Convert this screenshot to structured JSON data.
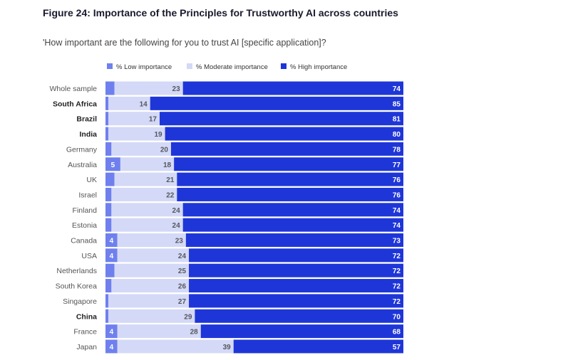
{
  "title": "Figure 24: Importance of the Principles for Trustworthy AI across countries",
  "subtitle": "'How important are the following for you to trust AI [specific application]?",
  "colors": {
    "low": "#6f80ee",
    "moderate": "#d4d9f7",
    "high": "#1e36d8",
    "lowText": "#ffffff",
    "modText": "#55575e",
    "highText": "#ffffff"
  },
  "chart_data": {
    "type": "bar",
    "orientation": "horizontal",
    "stacked": true,
    "categories": [
      "Whole sample",
      "South Africa",
      "Brazil",
      "India",
      "Germany",
      "Australia",
      "UK",
      "Israel",
      "Finland",
      "Estonia",
      "Canada",
      "USA",
      "Netherlands",
      "South Korea",
      "Singapore",
      "China",
      "France",
      "Japan"
    ],
    "bold_categories": [
      "South Africa",
      "Brazil",
      "India",
      "China"
    ],
    "series": [
      {
        "name": "% Low importance",
        "values": [
          3,
          1,
          1,
          1,
          2,
          5,
          3,
          2,
          2,
          2,
          4,
          4,
          3,
          2,
          1,
          1,
          4,
          4
        ],
        "labels": [
          "",
          "",
          "",
          "",
          "",
          "5",
          "",
          "",
          "",
          "",
          "4",
          "4",
          "",
          "",
          "",
          "",
          "4",
          "4"
        ]
      },
      {
        "name": "% Moderate importance",
        "values": [
          23,
          14,
          17,
          19,
          20,
          18,
          21,
          22,
          24,
          24,
          23,
          24,
          25,
          26,
          27,
          29,
          28,
          39
        ],
        "labels": [
          "23",
          "14",
          "17",
          "19",
          "20",
          "18",
          "21",
          "22",
          "24",
          "24",
          "23",
          "24",
          "25",
          "26",
          "27",
          "29",
          "28",
          "39"
        ]
      },
      {
        "name": "% High importance",
        "values": [
          74,
          85,
          81,
          80,
          78,
          77,
          76,
          76,
          74,
          74,
          73,
          72,
          72,
          72,
          72,
          70,
          68,
          57
        ],
        "labels": [
          "74",
          "85",
          "81",
          "80",
          "78",
          "77",
          "76",
          "76",
          "74",
          "74",
          "73",
          "72",
          "72",
          "72",
          "72",
          "70",
          "68",
          "57"
        ]
      }
    ],
    "xlim": [
      0,
      100
    ],
    "legend": "top"
  }
}
